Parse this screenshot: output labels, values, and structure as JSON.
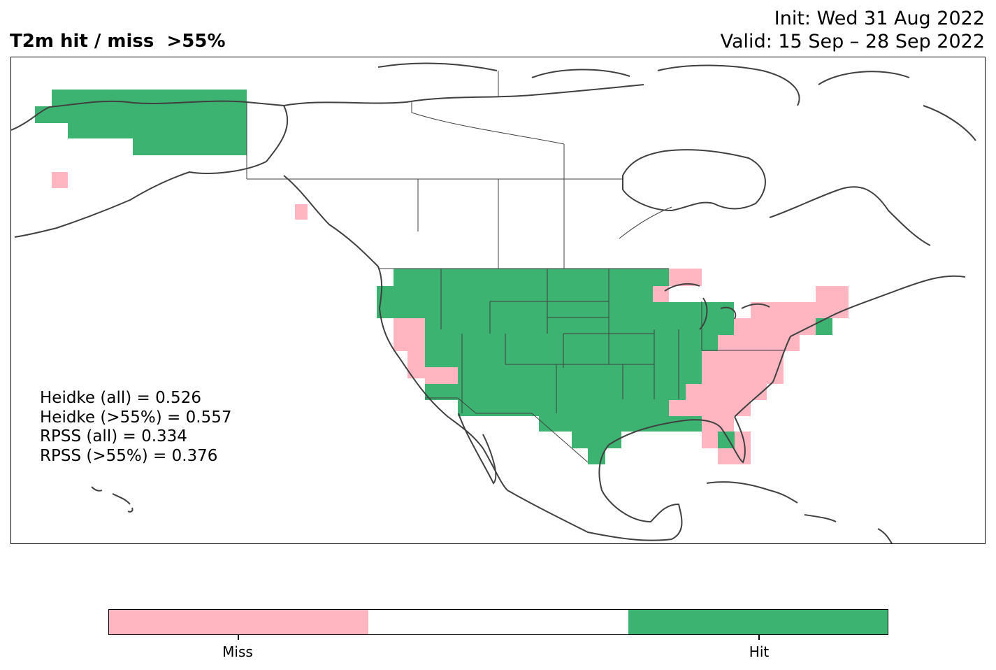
{
  "header": {
    "title": "T2m hit / miss  >55%",
    "init": "Init: Wed 31 Aug 2022",
    "valid": "Valid: 15 Sep – 28 Sep 2022"
  },
  "stats": [
    "Heidke (all) = 0.526",
    "Heidke (>55%) = 0.557",
    "RPSS (all) = 0.334",
    "RPSS (>55%) = 0.376"
  ],
  "colorbar": {
    "segments": [
      {
        "name": "miss",
        "color": "#FFB6C1"
      },
      {
        "name": "neutral",
        "color": "#FFFFFF"
      },
      {
        "name": "hit",
        "color": "#3CB371"
      }
    ],
    "labels": {
      "miss": "Miss",
      "hit": "Hit"
    }
  },
  "map": {
    "region": "North America",
    "hit_color": "#3CB371",
    "miss_color": "#FFB6C1",
    "coastline_color": "#404040"
  }
}
